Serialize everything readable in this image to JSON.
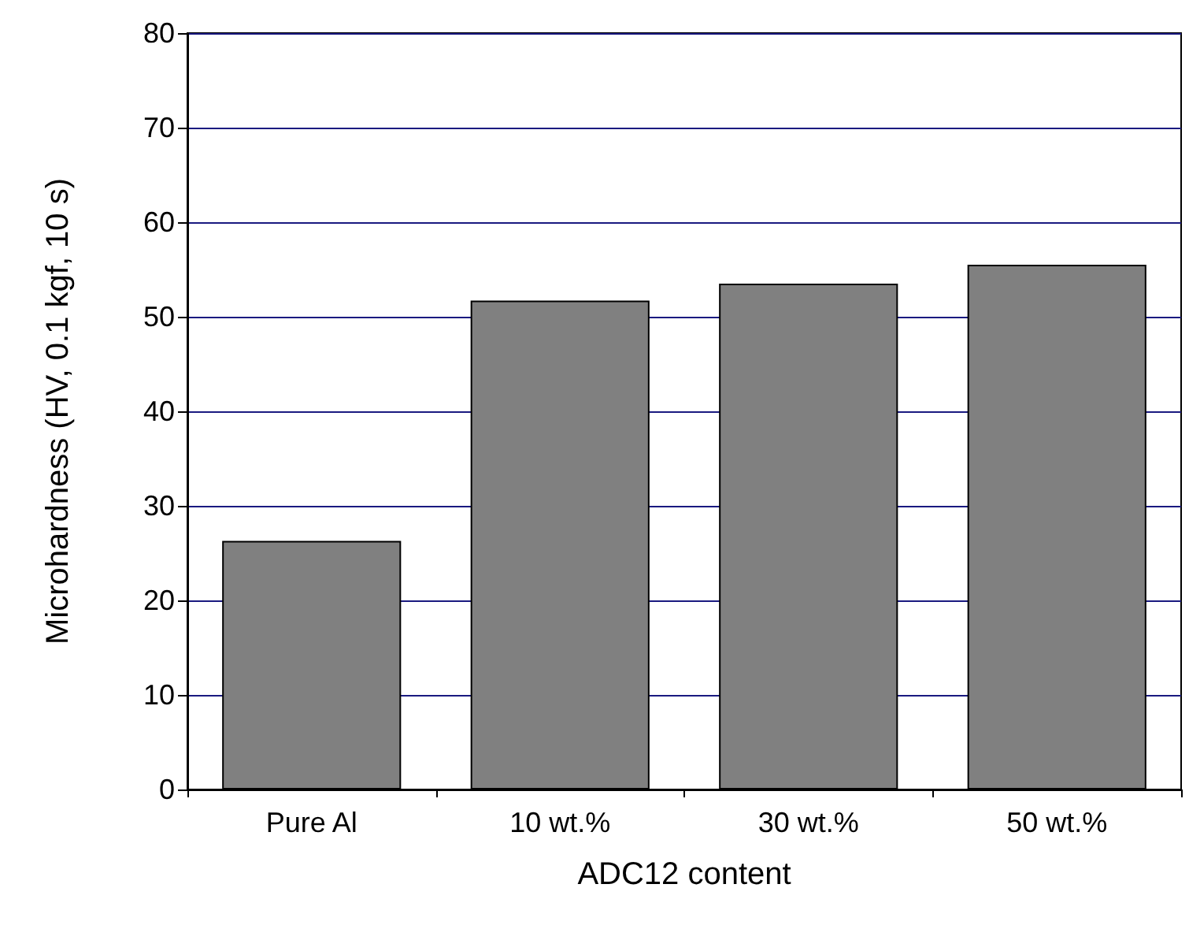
{
  "chart_data": {
    "type": "bar",
    "xlabel": "ADC12 content",
    "ylabel": "Microhardness (HV, 0.1 kgf, 10 s)",
    "categories": [
      "Pure Al",
      "10 wt.%",
      "30 wt.%",
      "50 wt.%"
    ],
    "values": [
      26.3,
      51.7,
      53.5,
      55.5
    ],
    "color": "#808080",
    "ylim": [
      0,
      80
    ],
    "yticks": [
      0,
      10,
      20,
      30,
      40,
      50,
      60,
      70,
      80
    ],
    "grid": "y"
  }
}
